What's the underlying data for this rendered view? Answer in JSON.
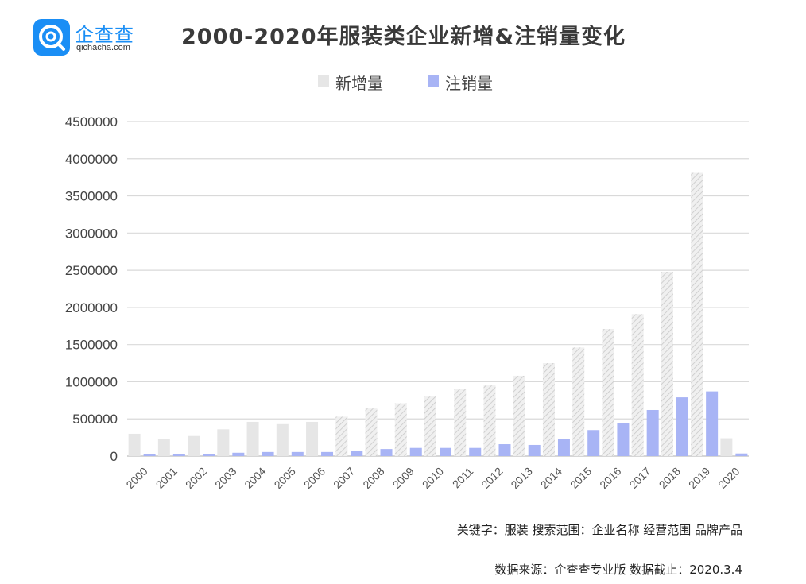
{
  "brand": {
    "name": "企查查",
    "url": "qichacha.com",
    "color": "#1a8ef5",
    "icon": "qichacha-logo-icon"
  },
  "chart_data": {
    "type": "bar",
    "title": "2000-2020年服装类企业新增&注销量变化",
    "xlabel": "",
    "ylabel": "",
    "ylim": [
      0,
      4500000
    ],
    "yticks": [
      0,
      500000,
      1000000,
      1500000,
      2000000,
      2500000,
      3000000,
      3500000,
      4000000,
      4500000
    ],
    "grid": true,
    "legend_position": "top-center",
    "categories": [
      "2000",
      "2001",
      "2002",
      "2003",
      "2004",
      "2005",
      "2006",
      "2007",
      "2008",
      "2009",
      "2010",
      "2011",
      "2012",
      "2013",
      "2014",
      "2015",
      "2016",
      "2017",
      "2018",
      "2019",
      "2020"
    ],
    "series": [
      {
        "name": "新增量",
        "color": "#e6e6e6",
        "values": [
          300000,
          230000,
          270000,
          360000,
          460000,
          430000,
          460000,
          530000,
          640000,
          710000,
          800000,
          900000,
          950000,
          1080000,
          1250000,
          1460000,
          1710000,
          1910000,
          2480000,
          3810000,
          240000
        ]
      },
      {
        "name": "注销量",
        "color": "#a8b4f5",
        "values": [
          30000,
          30000,
          30000,
          45000,
          55000,
          55000,
          55000,
          70000,
          95000,
          110000,
          110000,
          110000,
          160000,
          150000,
          235000,
          350000,
          440000,
          620000,
          790000,
          870000,
          35000
        ]
      }
    ]
  },
  "footer": {
    "keywords": "关键字：服装  搜索范围：企业名称  经营范围  品牌产品",
    "source": "数据来源：企查查专业版  数据截止：2020.3.4"
  }
}
